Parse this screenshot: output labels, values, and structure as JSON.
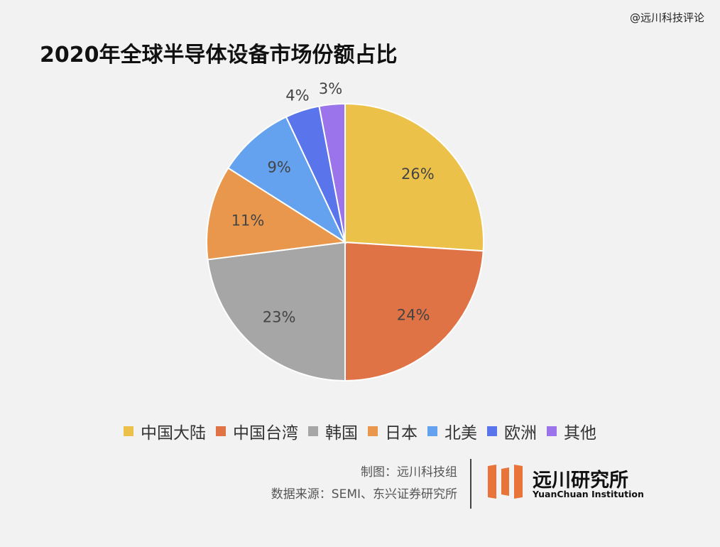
{
  "watermark": "@远川科技评论",
  "chart_data": {
    "type": "pie",
    "title": "2020年全球半导体设备市场份额占比",
    "slices": [
      {
        "name": "中国大陆",
        "value": 26,
        "label": "26%",
        "color": "#ecc14a"
      },
      {
        "name": "中国台湾",
        "value": 24,
        "label": "24%",
        "color": "#e07346"
      },
      {
        "name": "韩国",
        "value": 23,
        "label": "23%",
        "color": "#a6a6a6"
      },
      {
        "name": "日本",
        "value": 11,
        "label": "11%",
        "color": "#e8974d"
      },
      {
        "name": "北美",
        "value": 9,
        "label": "9%",
        "color": "#64a2f0"
      },
      {
        "name": "欧洲",
        "value": 4,
        "label": "4%",
        "color": "#5a74ec"
      },
      {
        "name": "其他",
        "value": 3,
        "label": "3%",
        "color": "#9b74ec"
      }
    ],
    "legend_position": "bottom"
  },
  "credits": {
    "maker": "制图：远川科技组",
    "source": "数据来源：SEMI、东兴证券研究所"
  },
  "logo": {
    "name_cn": "远川研究所",
    "name_en": "YuanChuan Institution",
    "color": "#e8743a"
  }
}
